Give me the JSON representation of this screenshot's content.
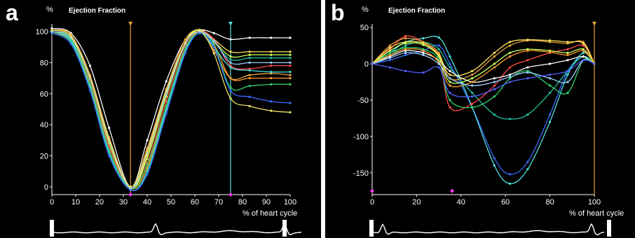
{
  "panels": [
    {
      "letter": "a",
      "title": "Ejection Fraction",
      "y_unit": "%",
      "x_unit": "% of heart cycle"
    },
    {
      "letter": "b",
      "title": "Ejection Fraction",
      "y_unit": "%",
      "x_unit": "% of heart cycle"
    }
  ],
  "colors": {
    "background": "#000000",
    "axis": "#ffffff",
    "cursor_orange": "#e8a13a",
    "cursor_cyan": "#4fe0e0",
    "marker_magenta": "#ff3cff",
    "series_palette": [
      "#ffffff",
      "#ffe45a",
      "#e8a13a",
      "#ff4a4a",
      "#4fe0e0",
      "#2fd06a",
      "#3a6cff",
      "#c8ff5a",
      "#ff9a2a",
      "#9ad0ff",
      "#d0d0d0",
      "#20c0a0"
    ]
  },
  "chart_data": [
    {
      "type": "line",
      "title": "Ejection Fraction",
      "xlabel": "% of heart cycle",
      "ylabel": "%",
      "xlim": [
        0,
        100
      ],
      "ylim": [
        -5,
        105
      ],
      "xticks": [
        0,
        10,
        20,
        30,
        40,
        50,
        60,
        70,
        80,
        90,
        100
      ],
      "yticks": [
        0,
        20,
        40,
        60,
        80,
        100
      ],
      "grid": false,
      "cursors_x": [
        33,
        75
      ],
      "x": [
        0,
        8,
        16,
        24,
        33,
        40,
        48,
        56,
        62,
        68,
        75,
        83,
        92,
        100
      ],
      "series": [
        {
          "color": "#ffffff",
          "values": [
            102,
            99,
            78,
            38,
            0,
            30,
            68,
            95,
            101,
            99,
            95,
            96,
            96,
            96
          ]
        },
        {
          "color": "#ffe45a",
          "values": [
            101,
            97,
            70,
            30,
            -1,
            20,
            60,
            92,
            101,
            95,
            87,
            87,
            87,
            87
          ]
        },
        {
          "color": "#c8ff5a",
          "values": [
            100,
            96,
            68,
            28,
            -1,
            18,
            58,
            92,
            101,
            94,
            84,
            85,
            85,
            85
          ]
        },
        {
          "color": "#e8a13a",
          "values": [
            101,
            98,
            72,
            32,
            0,
            25,
            63,
            95,
            100,
            88,
            70,
            72,
            73,
            72
          ]
        },
        {
          "color": "#ff4a4a",
          "values": [
            100,
            95,
            68,
            26,
            -1,
            15,
            55,
            90,
            100,
            95,
            78,
            76,
            78,
            78
          ]
        },
        {
          "color": "#ff9a2a",
          "values": [
            99,
            94,
            66,
            24,
            -1,
            12,
            52,
            89,
            100,
            92,
            70,
            70,
            70,
            70
          ]
        },
        {
          "color": "#4fe0e0",
          "values": [
            100,
            94,
            64,
            22,
            -2,
            10,
            50,
            88,
            99,
            90,
            77,
            75,
            74,
            74
          ]
        },
        {
          "color": "#20c0a0",
          "values": [
            99,
            93,
            63,
            21,
            -2,
            9,
            48,
            87,
            99,
            93,
            82,
            83,
            83,
            83
          ]
        },
        {
          "color": "#2fd06a",
          "values": [
            100,
            95,
            67,
            24,
            -1,
            14,
            52,
            89,
            99,
            91,
            64,
            65,
            66,
            66
          ]
        },
        {
          "color": "#3a6cff",
          "values": [
            99,
            92,
            62,
            20,
            -2,
            8,
            47,
            86,
            99,
            90,
            62,
            58,
            55,
            54
          ]
        },
        {
          "color": "#9ad0ff",
          "values": [
            100,
            96,
            70,
            30,
            -1,
            22,
            60,
            92,
            100,
            94,
            80,
            80,
            80,
            80
          ]
        },
        {
          "color": "#f0e060",
          "values": [
            101,
            97,
            71,
            31,
            0,
            23,
            62,
            93,
            101,
            86,
            57,
            52,
            49,
            48
          ]
        }
      ]
    },
    {
      "type": "line",
      "title": "Ejection Fraction",
      "xlabel": "% of heart cycle",
      "ylabel": "%",
      "xlim": [
        0,
        100
      ],
      "ylim": [
        -180,
        55
      ],
      "xticks": [
        0,
        20,
        40,
        60,
        80,
        100
      ],
      "yticks": [
        50,
        0,
        -50,
        -100,
        -150
      ],
      "grid": false,
      "cursors_x": [
        100
      ],
      "x": [
        0,
        8,
        15,
        23,
        30,
        35,
        45,
        55,
        62,
        70,
        80,
        88,
        95,
        100
      ],
      "series": [
        {
          "color": "#3a6cff",
          "values": [
            0,
            5,
            12,
            18,
            25,
            0,
            -60,
            -130,
            -152,
            -135,
            -70,
            -10,
            10,
            0
          ]
        },
        {
          "color": "#4fe0e0",
          "values": [
            0,
            15,
            30,
            35,
            36,
            10,
            -60,
            -140,
            -165,
            -145,
            -80,
            -15,
            15,
            0
          ]
        },
        {
          "color": "#20c0a0",
          "values": [
            0,
            12,
            25,
            30,
            20,
            -5,
            -40,
            -70,
            -76,
            -70,
            -40,
            -10,
            10,
            0
          ]
        },
        {
          "color": "#ff4a4a",
          "values": [
            0,
            20,
            38,
            30,
            10,
            -60,
            -55,
            -30,
            -5,
            5,
            15,
            20,
            25,
            0
          ]
        },
        {
          "color": "#e8a13a",
          "values": [
            0,
            25,
            35,
            30,
            15,
            -20,
            -15,
            10,
            25,
            32,
            30,
            28,
            30,
            0
          ]
        },
        {
          "color": "#ffe45a",
          "values": [
            0,
            22,
            30,
            28,
            12,
            -15,
            -10,
            15,
            30,
            33,
            32,
            30,
            28,
            0
          ]
        },
        {
          "color": "#ffffff",
          "values": [
            0,
            10,
            18,
            15,
            5,
            -10,
            -25,
            -20,
            -15,
            -5,
            0,
            5,
            10,
            0
          ]
        },
        {
          "color": "#2fd06a",
          "values": [
            0,
            15,
            22,
            20,
            5,
            -50,
            -60,
            -45,
            -20,
            -10,
            -30,
            -40,
            5,
            0
          ]
        },
        {
          "color": "#c8ff5a",
          "values": [
            0,
            18,
            28,
            26,
            10,
            -25,
            -20,
            0,
            15,
            20,
            18,
            15,
            20,
            0
          ]
        },
        {
          "color": "#ff9a2a",
          "values": [
            0,
            12,
            20,
            18,
            2,
            -30,
            -25,
            -5,
            10,
            18,
            16,
            12,
            18,
            0
          ]
        },
        {
          "color": "#9ad0ff",
          "values": [
            0,
            8,
            15,
            12,
            0,
            -20,
            -30,
            -25,
            -18,
            -12,
            -20,
            -25,
            5,
            0
          ]
        },
        {
          "color": "#5060ff",
          "values": [
            0,
            -5,
            -10,
            -12,
            -5,
            -40,
            -45,
            -35,
            -25,
            -20,
            -15,
            -10,
            5,
            0
          ]
        }
      ]
    }
  ]
}
